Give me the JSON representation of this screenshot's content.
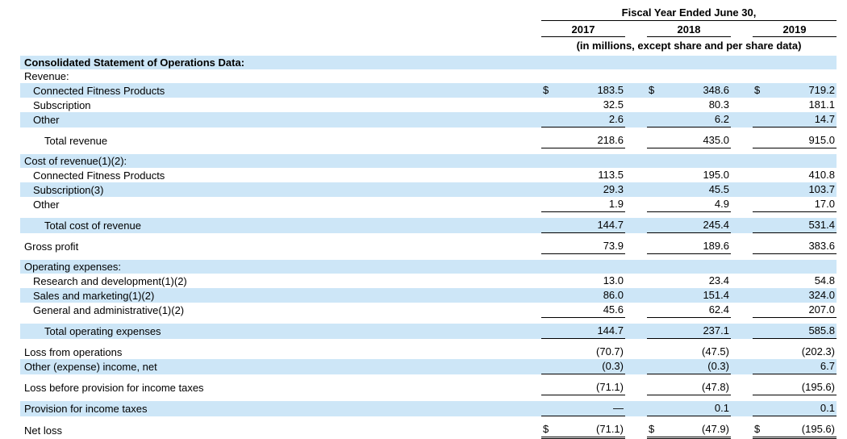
{
  "header": {
    "title": "Fiscal Year Ended June 30,",
    "years": [
      "2017",
      "2018",
      "2019"
    ],
    "subtitle": "(in millions, except share and per share data)"
  },
  "colors": {
    "row_shade": "#cde6f7",
    "text": "#000000"
  },
  "table": {
    "rows": [
      {
        "label": "Consolidated Statement of Operations Data:",
        "bold": true,
        "indent": 0,
        "shaded": true,
        "dollar": false,
        "underline": "none",
        "values": [
          "",
          "",
          ""
        ]
      },
      {
        "label": "Revenue:",
        "bold": false,
        "indent": 0,
        "shaded": false,
        "dollar": false,
        "underline": "none",
        "values": [
          "",
          "",
          ""
        ]
      },
      {
        "label": "Connected Fitness Products",
        "bold": false,
        "indent": 1,
        "shaded": true,
        "dollar": true,
        "underline": "none",
        "values": [
          "183.5",
          "348.6",
          "719.2"
        ]
      },
      {
        "label": "Subscription",
        "bold": false,
        "indent": 1,
        "shaded": false,
        "dollar": false,
        "underline": "none",
        "values": [
          "32.5",
          "80.3",
          "181.1"
        ]
      },
      {
        "label": "Other",
        "bold": false,
        "indent": 1,
        "shaded": true,
        "dollar": false,
        "underline": "single",
        "values": [
          "2.6",
          "6.2",
          "14.7"
        ]
      },
      {
        "label": "Total revenue",
        "bold": false,
        "indent": 2,
        "shaded": false,
        "dollar": false,
        "underline": "single",
        "values": [
          "218.6",
          "435.0",
          "915.0"
        ]
      },
      {
        "label": "Cost of revenue(1)(2):",
        "bold": false,
        "indent": 0,
        "shaded": true,
        "dollar": false,
        "underline": "none",
        "values": [
          "",
          "",
          ""
        ]
      },
      {
        "label": "Connected Fitness Products",
        "bold": false,
        "indent": 1,
        "shaded": false,
        "dollar": false,
        "underline": "none",
        "values": [
          "113.5",
          "195.0",
          "410.8"
        ]
      },
      {
        "label": "Subscription(3)",
        "bold": false,
        "indent": 1,
        "shaded": true,
        "dollar": false,
        "underline": "none",
        "values": [
          "29.3",
          "45.5",
          "103.7"
        ]
      },
      {
        "label": "Other",
        "bold": false,
        "indent": 1,
        "shaded": false,
        "dollar": false,
        "underline": "single",
        "values": [
          "1.9",
          "4.9",
          "17.0"
        ]
      },
      {
        "label": "Total cost of revenue",
        "bold": false,
        "indent": 2,
        "shaded": true,
        "dollar": false,
        "underline": "single",
        "values": [
          "144.7",
          "245.4",
          "531.4"
        ]
      },
      {
        "label": "Gross profit",
        "bold": false,
        "indent": 0,
        "shaded": false,
        "dollar": false,
        "underline": "single",
        "values": [
          "73.9",
          "189.6",
          "383.6"
        ]
      },
      {
        "label": "Operating expenses:",
        "bold": false,
        "indent": 0,
        "shaded": true,
        "dollar": false,
        "underline": "none",
        "values": [
          "",
          "",
          ""
        ]
      },
      {
        "label": "Research and development(1)(2)",
        "bold": false,
        "indent": 1,
        "shaded": false,
        "dollar": false,
        "underline": "none",
        "values": [
          "13.0",
          "23.4",
          "54.8"
        ]
      },
      {
        "label": "Sales and marketing(1)(2)",
        "bold": false,
        "indent": 1,
        "shaded": true,
        "dollar": false,
        "underline": "none",
        "values": [
          "86.0",
          "151.4",
          "324.0"
        ]
      },
      {
        "label": "General and administrative(1)(2)",
        "bold": false,
        "indent": 1,
        "shaded": false,
        "dollar": false,
        "underline": "single",
        "values": [
          "45.6",
          "62.4",
          "207.0"
        ]
      },
      {
        "label": "Total operating expenses",
        "bold": false,
        "indent": 2,
        "shaded": true,
        "dollar": false,
        "underline": "single",
        "values": [
          "144.7",
          "237.1",
          "585.8"
        ]
      },
      {
        "label": "Loss from operations",
        "bold": false,
        "indent": 0,
        "shaded": false,
        "dollar": false,
        "underline": "none",
        "values": [
          "(70.7)",
          "(47.5)",
          "(202.3)"
        ]
      },
      {
        "label": "Other (expense) income, net",
        "bold": false,
        "indent": 0,
        "shaded": true,
        "dollar": false,
        "underline": "single",
        "values": [
          "(0.3)",
          "(0.3)",
          "6.7"
        ]
      },
      {
        "label": "Loss before provision for income taxes",
        "bold": false,
        "indent": 0,
        "shaded": false,
        "dollar": false,
        "underline": "single",
        "values": [
          "(71.1)",
          "(47.8)",
          "(195.6)"
        ]
      },
      {
        "label": "Provision for income taxes",
        "bold": false,
        "indent": 0,
        "shaded": true,
        "dollar": false,
        "underline": "single",
        "values": [
          "—",
          "0.1",
          "0.1"
        ]
      },
      {
        "label": "Net loss",
        "bold": false,
        "indent": 0,
        "shaded": false,
        "dollar": true,
        "underline": "double",
        "values": [
          "(71.1)",
          "(47.9)",
          "(195.6)"
        ]
      }
    ]
  }
}
